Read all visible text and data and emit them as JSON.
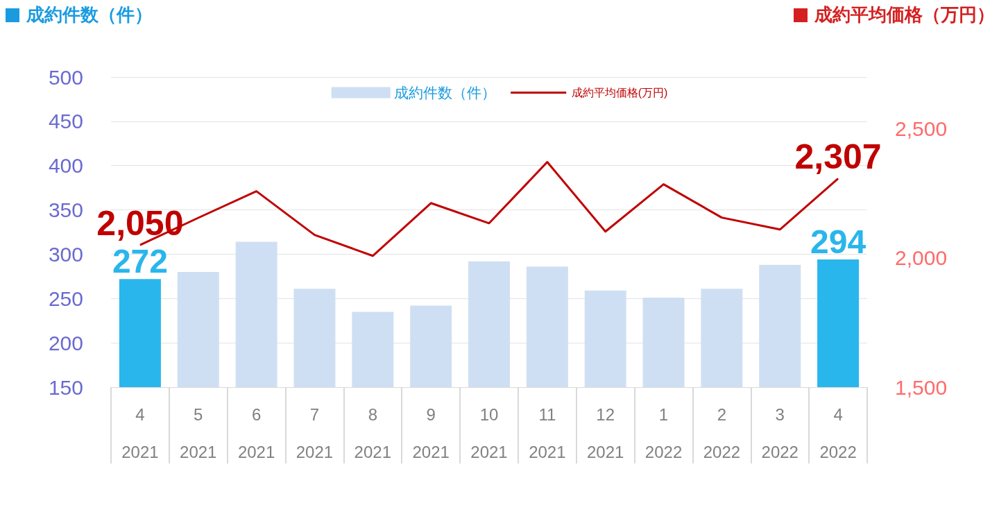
{
  "chart_data": {
    "type": "bar",
    "ylabel": "成約件数（件）",
    "y2label": "成約平均価格（万円）",
    "categories": [
      "4\n2021",
      "5\n2021",
      "6\n2021",
      "7\n2021",
      "8\n2021",
      "9\n2021",
      "10\n2021",
      "11\n2021",
      "12\n2021",
      "1\n2022",
      "2\n2022",
      "3\n2022",
      "4\n2022"
    ],
    "series": [
      {
        "name": "成約件数（件）",
        "color": "#cfdff3",
        "colors": [
          "#29b6ec",
          "#cfdff3",
          "#cfdff3",
          "#cfdff3",
          "#cfdff3",
          "#cfdff3",
          "#cfdff3",
          "#cfdff3",
          "#cfdff3",
          "#cfdff3",
          "#cfdff3",
          "#cfdff3",
          "#29b6ec"
        ],
        "values": [
          272,
          280,
          314,
          261,
          235,
          242,
          292,
          286,
          259,
          251,
          261,
          288,
          294
        ],
        "value_labels": [
          "272",
          null,
          null,
          null,
          null,
          null,
          null,
          null,
          null,
          null,
          null,
          null,
          "294"
        ]
      },
      {
        "name": "成約平均価格(万円)",
        "type": "line",
        "axis": "y2",
        "color": "#c00000",
        "values": [
          2050,
          2155,
          2258,
          2089,
          2008,
          2212,
          2134,
          2371,
          2102,
          2285,
          2156,
          2110,
          2307
        ],
        "value_labels": [
          "2,050",
          null,
          null,
          null,
          null,
          null,
          null,
          null,
          null,
          null,
          null,
          null,
          "2,307"
        ]
      }
    ],
    "ylim": [
      150,
      500
    ],
    "yticks": [
      150,
      200,
      250,
      300,
      350,
      400,
      450,
      500
    ],
    "y2lim": [
      1500,
      2700
    ],
    "y2ticks": [
      {
        "value": 1500,
        "label": "1,500"
      },
      {
        "value": 2000,
        "label": "2,000"
      },
      {
        "value": 2500,
        "label": "2,500"
      }
    ],
    "grid": "y",
    "legend": "top",
    "marker": "none",
    "line_style": "solid"
  }
}
